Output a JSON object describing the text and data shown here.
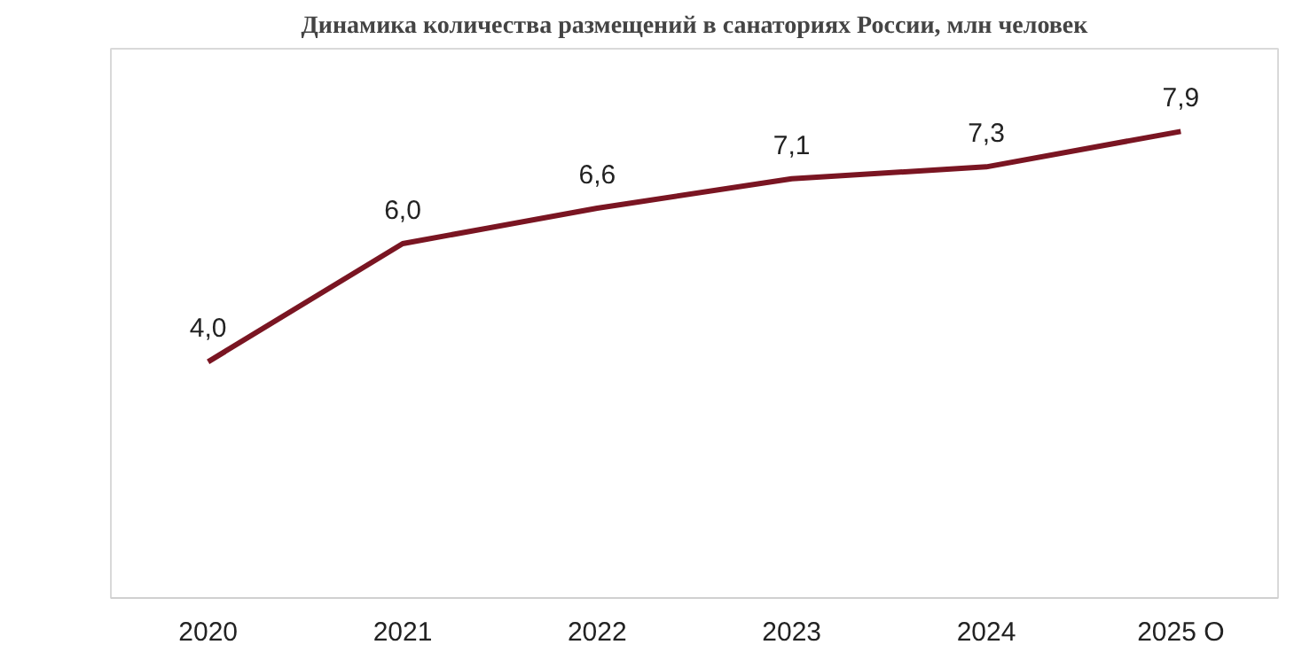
{
  "chart_data": {
    "type": "line",
    "title": "Динамика количества размещений в санаториях России, млн человек",
    "categories": [
      "2020",
      "2021",
      "2022",
      "2023",
      "2024",
      "2025 О"
    ],
    "series": [
      {
        "color": "#7a1522",
        "values": [
          4.0,
          6.0,
          6.6,
          7.1,
          7.3,
          7.9
        ],
        "value_labels": [
          "4,0",
          "6,0",
          "6,6",
          "7,1",
          "7,3",
          "7,9"
        ]
      }
    ],
    "ylim": [
      0,
      9.3
    ],
    "tick_labels": "x",
    "grid": false,
    "marker": "none",
    "line_style": "solid"
  }
}
